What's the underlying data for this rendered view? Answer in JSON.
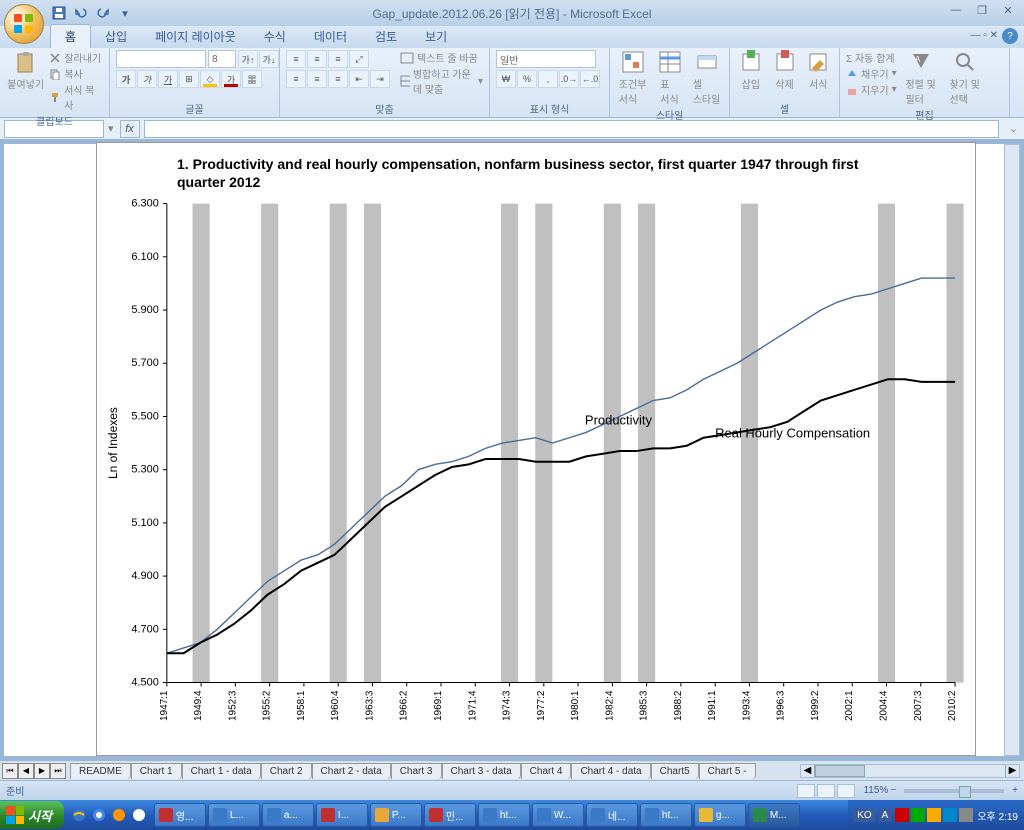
{
  "window": {
    "title": "Gap_update.2012.06.26 [읽기 전용] - Microsoft Excel"
  },
  "qat": {
    "save": "save",
    "undo": "undo",
    "redo": "redo"
  },
  "ribbon_tabs": [
    "홈",
    "삽입",
    "페이지 레이아웃",
    "수식",
    "데이터",
    "검토",
    "보기"
  ],
  "ribbon": {
    "clipboard": {
      "label": "클립보드",
      "paste": "붙여넣기",
      "cut": "잘라내기",
      "copy": "복사",
      "format_painter": "서식 복사"
    },
    "font": {
      "label": "글꼴",
      "font_name": "",
      "font_size": "8",
      "grow": "가",
      "shrink": "가"
    },
    "alignment": {
      "label": "맞춤",
      "wrap": "텍스트 줄 바꿈",
      "merge": "병합하고 가운데 맞춤"
    },
    "number": {
      "label": "표시 형식",
      "format": "일반"
    },
    "styles": {
      "label": "스타일",
      "cond": "조건부\n서식",
      "table": "표\n서식",
      "cell": "셀\n스타일"
    },
    "cells": {
      "label": "셀",
      "insert": "삽입",
      "delete": "삭제",
      "format": "서식"
    },
    "editing": {
      "label": "편집",
      "autosum": "Σ 자동 합계",
      "fill": "채우기",
      "clear": "지우기",
      "sort": "정렬 및\n필터",
      "find": "찾기 및\n선택"
    }
  },
  "formula_bar": {
    "fx": "fx",
    "name_box": ""
  },
  "chart": {
    "title": "1.  Productivity and real hourly compensation, nonfarm business sector, first quarter 1947 through first quarter 2012",
    "ylabel": "Ln of Indexes",
    "ylim": [
      4.5,
      6.3
    ],
    "yticks": [
      "4.500",
      "4.700",
      "4.900",
      "5.100",
      "5.300",
      "5.500",
      "5.700",
      "5.900",
      "6.100",
      "6.300"
    ],
    "xcategories": [
      "1947:1",
      "1949:4",
      "1952:3",
      "1955:2",
      "1958:1",
      "1960:4",
      "1963:3",
      "1966:2",
      "1969:1",
      "1971:4",
      "1974:3",
      "1977:2",
      "1980:1",
      "1982:4",
      "1985:3",
      "1988:2",
      "1991:1",
      "1993:4",
      "1996:3",
      "1999:2",
      "2002:1",
      "2004:4",
      "2007:3",
      "2010:2"
    ],
    "recession_bands_idx": [
      1,
      3,
      5,
      6,
      10,
      11,
      13,
      14,
      17,
      21,
      23
    ],
    "series": {
      "productivity": {
        "label": "Productivity",
        "color": "#4a6a9a",
        "label_x_idx": 12.2,
        "label_y": 5.47,
        "data": [
          4.61,
          4.63,
          4.65,
          4.7,
          4.76,
          4.82,
          4.88,
          4.92,
          4.96,
          4.98,
          5.02,
          5.08,
          5.14,
          5.2,
          5.24,
          5.3,
          5.32,
          5.33,
          5.35,
          5.38,
          5.4,
          5.41,
          5.42,
          5.4,
          5.42,
          5.44,
          5.47,
          5.5,
          5.53,
          5.56,
          5.57,
          5.6,
          5.64,
          5.67,
          5.7,
          5.74,
          5.78,
          5.82,
          5.86,
          5.9,
          5.93,
          5.95,
          5.96,
          5.98,
          6.0,
          6.02,
          6.02,
          6.02
        ]
      },
      "compensation": {
        "label": "Real Hourly  Compensation",
        "color": "#000000",
        "label_x_idx": 16,
        "label_y": 5.42,
        "data": [
          4.61,
          4.61,
          4.65,
          4.68,
          4.72,
          4.77,
          4.83,
          4.87,
          4.92,
          4.95,
          4.98,
          5.04,
          5.1,
          5.16,
          5.2,
          5.24,
          5.28,
          5.31,
          5.32,
          5.34,
          5.34,
          5.34,
          5.33,
          5.33,
          5.33,
          5.35,
          5.36,
          5.37,
          5.37,
          5.38,
          5.38,
          5.39,
          5.42,
          5.43,
          5.44,
          5.45,
          5.46,
          5.48,
          5.52,
          5.56,
          5.58,
          5.6,
          5.62,
          5.64,
          5.64,
          5.63,
          5.63,
          5.63
        ]
      }
    },
    "background_color": "#ffffff",
    "band_color": "#c0c0c0",
    "gridline_width": 0,
    "line_width_prod": 1.4,
    "line_width_comp": 2.0
  },
  "sheet_tabs": [
    "README",
    "Chart 1",
    "Chart 1 - data",
    "Chart 2",
    "Chart 2 - data",
    "Chart 3",
    "Chart 3 - data",
    "Chart 4",
    "Chart 4 - data",
    "Chart5",
    "Chart 5 -"
  ],
  "statusbar": {
    "ready": "준비",
    "zoom": "115%"
  },
  "taskbar": {
    "start": "시작",
    "items": [
      {
        "label": "영...",
        "color": "#c03030"
      },
      {
        "label": "L...",
        "color": "#3a78c8"
      },
      {
        "label": "a...",
        "color": "#3a78c8"
      },
      {
        "label": "I...",
        "color": "#c03030"
      },
      {
        "label": "P...",
        "color": "#e8a838"
      },
      {
        "label": "민...",
        "color": "#c03030"
      },
      {
        "label": "ht...",
        "color": "#3a78c8"
      },
      {
        "label": "W...",
        "color": "#3a78c8"
      },
      {
        "label": "네...",
        "color": "#3a78c8"
      },
      {
        "label": "ht...",
        "color": "#3a78c8"
      },
      {
        "label": "g...",
        "color": "#e8b838"
      },
      {
        "label": "M...",
        "color": "#2a8a4a",
        "active": true
      }
    ],
    "lang": "KO",
    "ime": "A",
    "time": "오후 2:19"
  }
}
